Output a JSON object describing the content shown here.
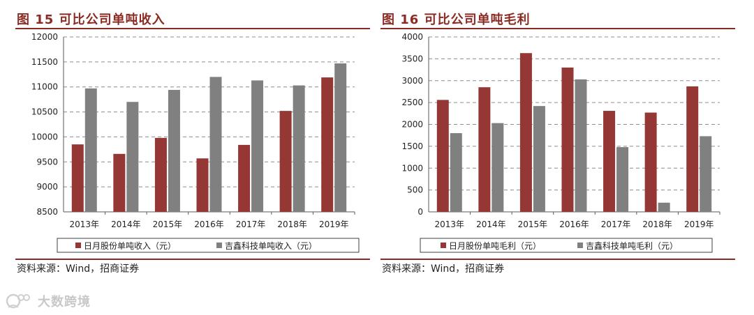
{
  "panels": [
    {
      "title": "图 15 可比公司单吨收入",
      "source": "资料来源：Wind，招商证券",
      "chart_data": {
        "type": "bar",
        "title": "图 15 可比公司单吨收入",
        "categories": [
          "2013年",
          "2014年",
          "2015年",
          "2016年",
          "2017年",
          "2018年",
          "2019年"
        ],
        "series": [
          {
            "name": "日月股份单吨收入（元）",
            "color": "#953735",
            "values": [
              9850,
              9660,
              9980,
              9570,
              9840,
              10520,
              11190
            ]
          },
          {
            "name": "吉鑫科技单吨收入（元）",
            "color": "#808080",
            "values": [
              10970,
              10700,
              10940,
              11200,
              11130,
              11030,
              11470
            ]
          }
        ],
        "ylim": [
          8500,
          12000
        ],
        "yticks": [
          8500,
          9000,
          9500,
          10000,
          10500,
          11000,
          11500,
          12000
        ],
        "grid": true,
        "legend": "bottom"
      }
    },
    {
      "title": "图 16 可比公司单吨毛利",
      "source": "资料来源：Wind，招商证券",
      "chart_data": {
        "type": "bar",
        "title": "图 16 可比公司单吨毛利",
        "categories": [
          "2013年",
          "2014年",
          "2015年",
          "2016年",
          "2017年",
          "2018年",
          "2019年"
        ],
        "series": [
          {
            "name": "日月股份单吨毛利（元）",
            "color": "#953735",
            "values": [
              2560,
              2850,
              3630,
              3300,
              2310,
              2270,
              2870
            ]
          },
          {
            "name": "吉鑫科技单吨毛利（元）",
            "color": "#808080",
            "values": [
              1800,
              2030,
              2420,
              3030,
              1480,
              210,
              1730
            ]
          }
        ],
        "ylim": [
          0,
          4000
        ],
        "yticks": [
          0,
          500,
          1000,
          1500,
          2000,
          2500,
          3000,
          3500,
          4000
        ],
        "grid": true,
        "legend": "bottom"
      }
    }
  ],
  "watermark": {
    "text": "大数跨境",
    "icon": "brand-logo-icon"
  }
}
